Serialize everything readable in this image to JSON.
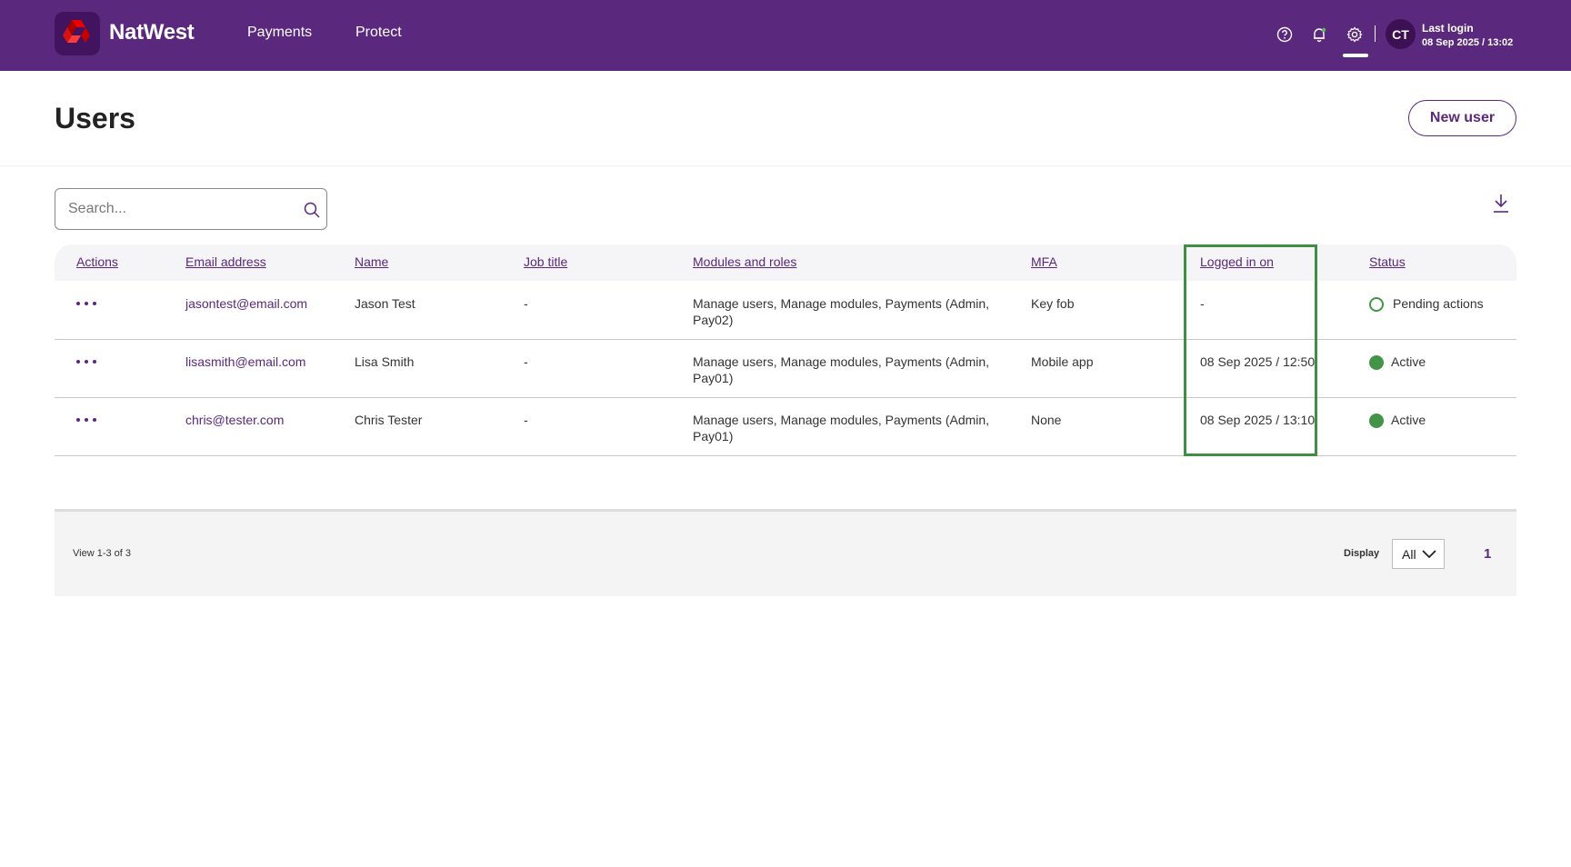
{
  "header": {
    "brand": "NatWest",
    "nav": [
      "Payments",
      "Protect"
    ],
    "avatar_initials": "CT",
    "last_login_label": "Last login",
    "last_login_value": "08 Sep 2025 / 13:02",
    "icons": [
      "help-icon",
      "bell-icon",
      "settings-icon"
    ]
  },
  "page": {
    "title": "Users",
    "new_user_label": "New user"
  },
  "search": {
    "placeholder": "Search..."
  },
  "table": {
    "columns": [
      "Actions",
      "Email address",
      "Name",
      "Job title",
      "Modules and roles",
      "MFA",
      "Logged in on",
      "Status"
    ],
    "rows": [
      {
        "email": "jasontest@email.com",
        "name": "Jason Test",
        "job_title": "-",
        "roles": "Manage users, Manage modules, Payments (Admin, Pay02)",
        "mfa": "Key fob",
        "logged_in_on": "-",
        "status": "Pending actions"
      },
      {
        "email": "lisasmith@email.com",
        "name": "Lisa Smith",
        "job_title": "-",
        "roles": "Manage users, Manage modules, Payments (Admin, Pay01)",
        "mfa": "Mobile app",
        "logged_in_on": "08 Sep 2025 / 12:50",
        "status": "Active"
      },
      {
        "email": "chris@tester.com",
        "name": "Chris Tester",
        "job_title": "-",
        "roles": "Manage users, Manage modules, Payments (Admin, Pay01)",
        "mfa": "None",
        "logged_in_on": "08 Sep 2025 / 13:10",
        "status": "Active"
      }
    ]
  },
  "footer": {
    "view_count": "View 1-3 of 3",
    "display_label": "Display",
    "display_value": "All",
    "page": "1"
  },
  "colors": {
    "brand_purple": "#5a287d",
    "status_green": "#429448",
    "highlight_green": "#3f8f42"
  }
}
